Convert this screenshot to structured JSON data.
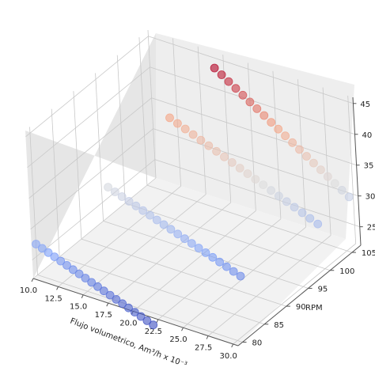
{
  "chart_data": {
    "type": "scatter",
    "projection": "3d",
    "colormap": "coolwarm",
    "title": "",
    "xlabel": "Flujo volumetrico, Am³/h x 10⁻³",
    "ylabel": "RPM",
    "zlabel": "",
    "x_ticks": [
      "10.0",
      "12.5",
      "15.0",
      "17.5",
      "20.0",
      "22.5",
      "25.0",
      "27.5",
      "30.0"
    ],
    "y_ticks": [
      "80",
      "85",
      "90",
      "95",
      "100",
      "105"
    ],
    "z_ticks": [
      "25",
      "30",
      "35",
      "40",
      "45"
    ],
    "xlim": [
      10,
      30.5
    ],
    "ylim": [
      79,
      107
    ],
    "zlim": [
      22,
      46
    ],
    "grid": true,
    "series": [
      {
        "rpm": 80,
        "flow_range": [
          10.0,
          21.5
        ],
        "head_range": [
          27.0,
          20.0
        ]
      },
      {
        "rpm": 90,
        "flow_range": [
          13.0,
          26.0
        ],
        "head_range": [
          32.0,
          24.5
        ]
      },
      {
        "rpm": 100,
        "flow_range": [
          15.0,
          29.5
        ],
        "head_range": [
          38.5,
          29.0
        ]
      },
      {
        "rpm": 105,
        "flow_range": [
          17.5,
          30.5
        ],
        "head_range": [
          45.0,
          31.0
        ]
      }
    ],
    "points_per_series": 20
  },
  "colors": {
    "pane_left": "#e6e6e6",
    "pane_back": "#eeeeee",
    "pane_floor": "#f2f2f2",
    "grid": "#c8c8c8",
    "axis": "#555555"
  }
}
